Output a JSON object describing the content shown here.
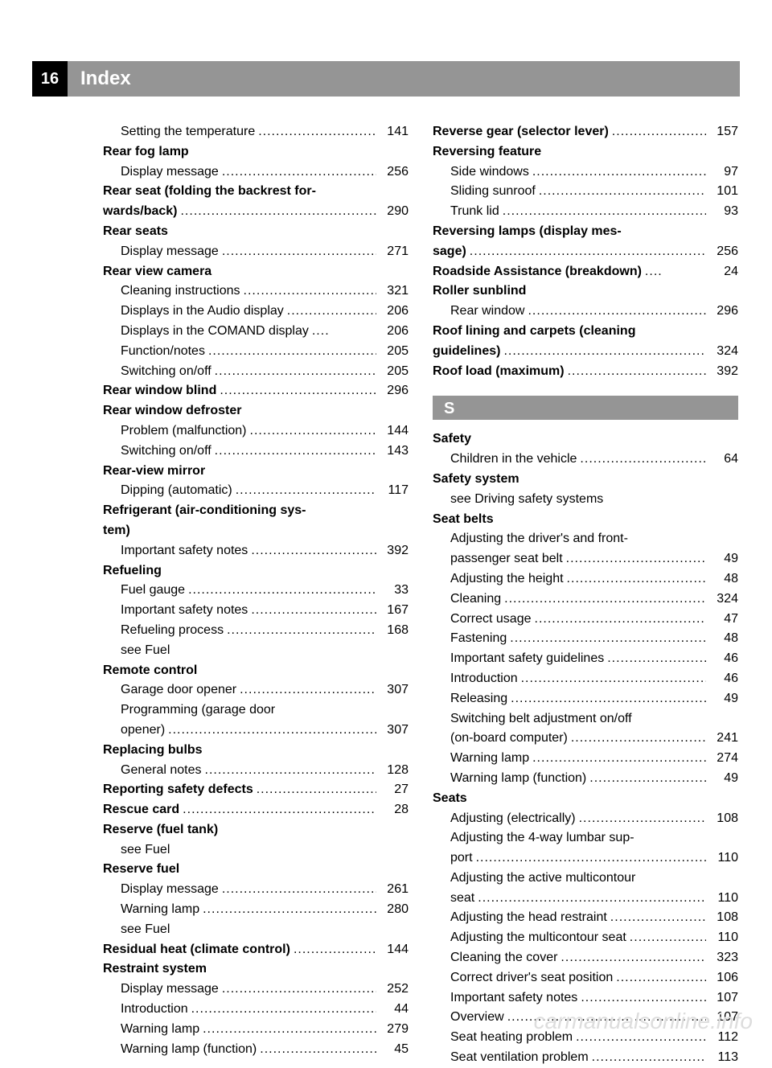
{
  "page_number": "16",
  "header_title": "Index",
  "watermark": "carmanualsonline.info",
  "colors": {
    "header_bg": "#959595",
    "page_num_bg": "#000000",
    "text": "#000000",
    "header_text": "#ffffff",
    "watermark": "#dddddd"
  },
  "left": [
    {
      "text": "Setting the temperature",
      "page": "141",
      "sub": true
    },
    {
      "text": "Rear fog lamp",
      "bold": true,
      "heading": true
    },
    {
      "text": "Display message",
      "page": "256",
      "sub": true
    },
    {
      "text": "Rear seat (folding the backrest for-",
      "bold": true,
      "heading": true
    },
    {
      "text": "wards/back)",
      "bold": true,
      "page": "290"
    },
    {
      "text": "Rear seats",
      "bold": true,
      "heading": true
    },
    {
      "text": "Display message",
      "page": "271",
      "sub": true
    },
    {
      "text": "Rear view camera",
      "bold": true,
      "heading": true
    },
    {
      "text": "Cleaning instructions",
      "page": "321",
      "sub": true
    },
    {
      "text": "Displays in the Audio display",
      "page": "206",
      "sub": true
    },
    {
      "text": "Displays in the COMAND display",
      "page": "206",
      "sub": true,
      "shortdots": true
    },
    {
      "text": "Function/notes",
      "page": "205",
      "sub": true
    },
    {
      "text": "Switching on/off",
      "page": "205",
      "sub": true
    },
    {
      "text": "Rear window blind",
      "bold": true,
      "page": "296"
    },
    {
      "text": "Rear window defroster",
      "bold": true,
      "heading": true
    },
    {
      "text": "Problem (malfunction)",
      "page": "144",
      "sub": true
    },
    {
      "text": "Switching on/off",
      "page": "143",
      "sub": true
    },
    {
      "text": "Rear-view mirror",
      "bold": true,
      "heading": true
    },
    {
      "text": "Dipping (automatic)",
      "page": "117",
      "sub": true
    },
    {
      "text": "Refrigerant (air-conditioning sys-",
      "bold": true,
      "heading": true
    },
    {
      "text": "tem)",
      "bold": true,
      "heading": true
    },
    {
      "text": "Important safety notes",
      "page": "392",
      "sub": true
    },
    {
      "text": "Refueling",
      "bold": true,
      "heading": true
    },
    {
      "text": "Fuel gauge",
      "page": "33",
      "sub": true
    },
    {
      "text": "Important safety notes",
      "page": "167",
      "sub": true
    },
    {
      "text": "Refueling process",
      "page": "168",
      "sub": true
    },
    {
      "text": "see Fuel",
      "sub": true,
      "heading": true
    },
    {
      "text": "Remote control",
      "bold": true,
      "heading": true
    },
    {
      "text": "Garage door opener",
      "page": "307",
      "sub": true
    },
    {
      "text": "Programming (garage door",
      "sub": true,
      "heading": true
    },
    {
      "text": "opener)",
      "page": "307",
      "sub": true
    },
    {
      "text": "Replacing bulbs",
      "bold": true,
      "heading": true
    },
    {
      "text": "General notes",
      "page": "128",
      "sub": true
    },
    {
      "text": "Reporting safety defects",
      "bold": true,
      "page": "27"
    },
    {
      "text": "Rescue card",
      "bold": true,
      "page": "28"
    },
    {
      "text": "Reserve (fuel tank)",
      "bold": true,
      "heading": true
    },
    {
      "text": "see Fuel",
      "sub": true,
      "heading": true
    },
    {
      "text": "Reserve fuel",
      "bold": true,
      "heading": true
    },
    {
      "text": "Display message",
      "page": "261",
      "sub": true
    },
    {
      "text": "Warning lamp",
      "page": "280",
      "sub": true
    },
    {
      "text": "see Fuel",
      "sub": true,
      "heading": true
    },
    {
      "text": "Residual heat (climate control)",
      "bold": true,
      "page": "144"
    },
    {
      "text": "Restraint system",
      "bold": true,
      "heading": true
    },
    {
      "text": "Display message",
      "page": "252",
      "sub": true
    },
    {
      "text": "Introduction",
      "page": "44",
      "sub": true
    },
    {
      "text": "Warning lamp",
      "page": "279",
      "sub": true
    },
    {
      "text": "Warning lamp (function)",
      "page": "45",
      "sub": true
    }
  ],
  "right": [
    {
      "text": "Reverse gear (selector lever)",
      "bold": true,
      "page": "157"
    },
    {
      "text": "Reversing feature",
      "bold": true,
      "heading": true
    },
    {
      "text": "Side windows",
      "page": "97",
      "sub": true
    },
    {
      "text": "Sliding sunroof",
      "page": "101",
      "sub": true
    },
    {
      "text": "Trunk lid",
      "page": "93",
      "sub": true
    },
    {
      "text": "Reversing lamps (display mes-",
      "bold": true,
      "heading": true
    },
    {
      "text": "sage)",
      "bold": true,
      "page": "256"
    },
    {
      "text": "Roadside Assistance (breakdown)",
      "bold": true,
      "page": "24",
      "shortdots": true
    },
    {
      "text": "Roller sunblind",
      "bold": true,
      "heading": true
    },
    {
      "text": "Rear window",
      "page": "296",
      "sub": true
    },
    {
      "text": "Roof lining and carpets (cleaning",
      "bold": true,
      "heading": true
    },
    {
      "text": "guidelines)",
      "bold": true,
      "page": "324"
    },
    {
      "text": "Roof load (maximum)",
      "bold": true,
      "page": "392"
    },
    {
      "letter": "S"
    },
    {
      "text": "Safety",
      "bold": true,
      "heading": true
    },
    {
      "text": "Children in the vehicle",
      "page": "64",
      "sub": true
    },
    {
      "text": "Safety system",
      "bold": true,
      "heading": true
    },
    {
      "text": "see Driving safety systems",
      "sub": true,
      "heading": true
    },
    {
      "text": "Seat belts",
      "bold": true,
      "heading": true
    },
    {
      "text": "Adjusting the driver's and front-",
      "sub": true,
      "heading": true
    },
    {
      "text": "passenger seat belt",
      "page": "49",
      "sub": true
    },
    {
      "text": "Adjusting the height",
      "page": "48",
      "sub": true
    },
    {
      "text": "Cleaning",
      "page": "324",
      "sub": true
    },
    {
      "text": "Correct usage",
      "page": "47",
      "sub": true
    },
    {
      "text": "Fastening",
      "page": "48",
      "sub": true
    },
    {
      "text": "Important safety guidelines",
      "page": "46",
      "sub": true
    },
    {
      "text": "Introduction",
      "page": "46",
      "sub": true
    },
    {
      "text": "Releasing",
      "page": "49",
      "sub": true
    },
    {
      "text": "Switching belt adjustment on/off",
      "sub": true,
      "heading": true
    },
    {
      "text": "(on-board computer)",
      "page": "241",
      "sub": true
    },
    {
      "text": "Warning lamp",
      "page": "274",
      "sub": true
    },
    {
      "text": "Warning lamp (function)",
      "page": "49",
      "sub": true
    },
    {
      "text": "Seats",
      "bold": true,
      "heading": true
    },
    {
      "text": "Adjusting (electrically)",
      "page": "108",
      "sub": true
    },
    {
      "text": "Adjusting the 4-way lumbar sup-",
      "sub": true,
      "heading": true
    },
    {
      "text": "port",
      "page": "110",
      "sub": true
    },
    {
      "text": "Adjusting the active multicontour",
      "sub": true,
      "heading": true
    },
    {
      "text": "seat",
      "page": "110",
      "sub": true
    },
    {
      "text": "Adjusting the head restraint",
      "page": "108",
      "sub": true
    },
    {
      "text": "Adjusting the multicontour seat",
      "page": "110",
      "sub": true
    },
    {
      "text": "Cleaning the cover",
      "page": "323",
      "sub": true
    },
    {
      "text": "Correct driver's seat position",
      "page": "106",
      "sub": true
    },
    {
      "text": "Important safety notes",
      "page": "107",
      "sub": true
    },
    {
      "text": "Overview",
      "page": "107",
      "sub": true
    },
    {
      "text": "Seat heating problem",
      "page": "112",
      "sub": true
    },
    {
      "text": "Seat ventilation problem",
      "page": "113",
      "sub": true
    }
  ]
}
